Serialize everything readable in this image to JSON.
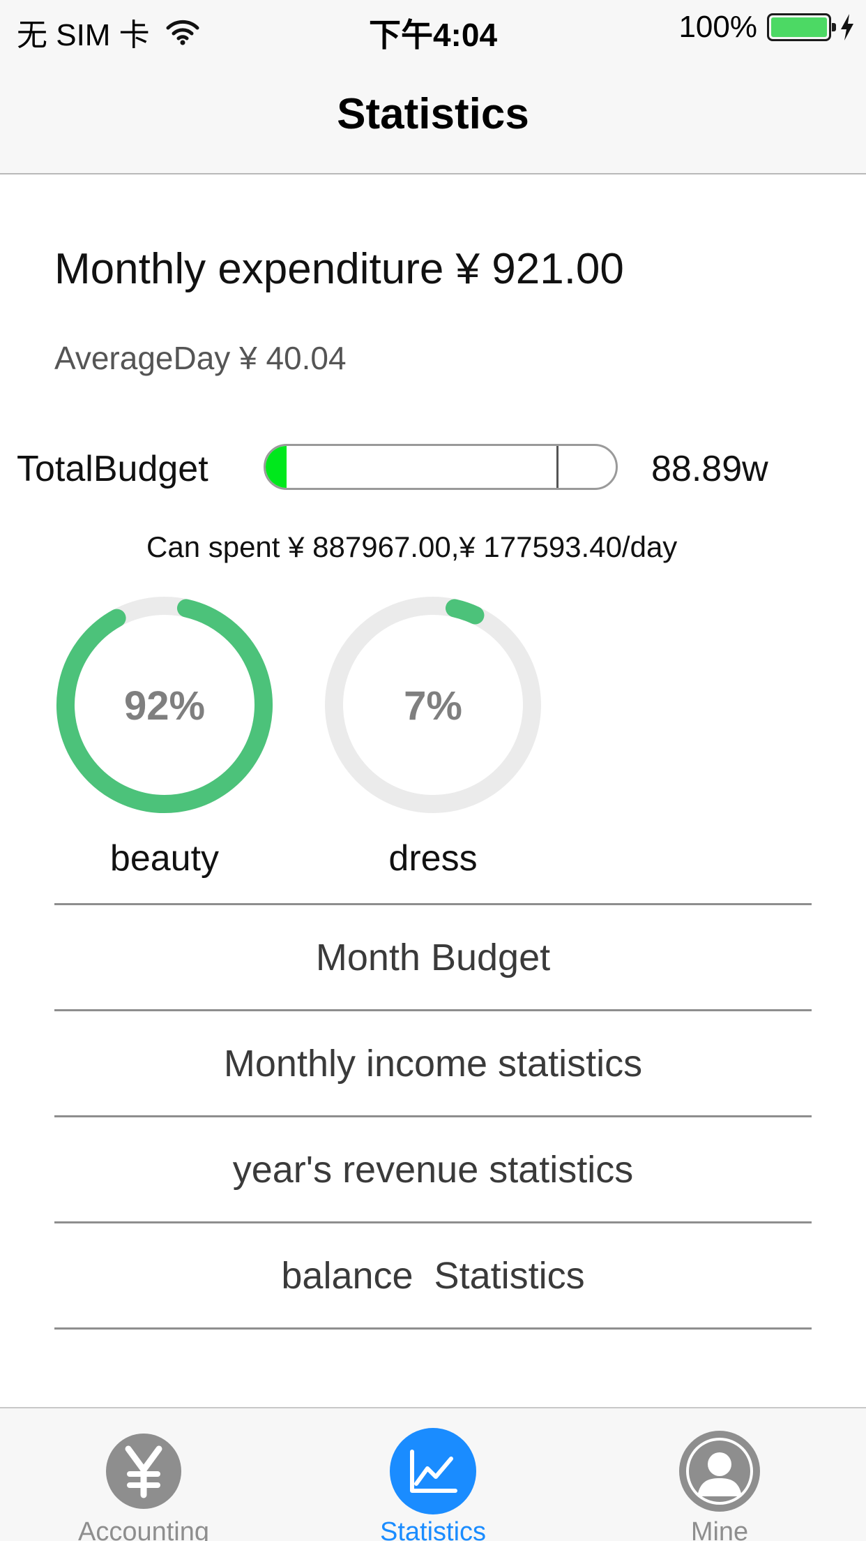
{
  "status_bar": {
    "carrier": "无 SIM 卡",
    "time": "下午4:04",
    "battery_percent": "100%",
    "battery_color": "#4cd964"
  },
  "nav": {
    "title": "Statistics"
  },
  "summary": {
    "monthly_expenditure": "Monthly expenditure ¥ 921.00",
    "average_day": "AverageDay ¥ 40.04"
  },
  "budget": {
    "label": "TotalBudget",
    "value": "88.89w",
    "used_fraction": 0.06,
    "marker_fraction": 0.83,
    "fill_color": "#00e81c",
    "can_spent": "Can spent ¥ 887967.00,¥ 177593.40/day"
  },
  "categories": [
    {
      "label": "beauty",
      "percent_text": "92%",
      "fraction": 0.92,
      "color": "#4cc27a"
    },
    {
      "label": "dress",
      "percent_text": "7%",
      "fraction": 0.07,
      "color": "#4cc27a"
    }
  ],
  "ring_track_color": "#ebebeb",
  "menu": [
    {
      "label": "Month Budget"
    },
    {
      "label": "Monthly income statistics"
    },
    {
      "label": "year's revenue statistics"
    },
    {
      "label": "balance  Statistics"
    }
  ],
  "tabs": [
    {
      "label": "Accounting",
      "icon": "yen-icon",
      "active": false
    },
    {
      "label": "Statistics",
      "icon": "chart-icon",
      "active": true
    },
    {
      "label": "Mine",
      "icon": "user-icon",
      "active": false
    }
  ],
  "accent_color": "#1a8cff"
}
